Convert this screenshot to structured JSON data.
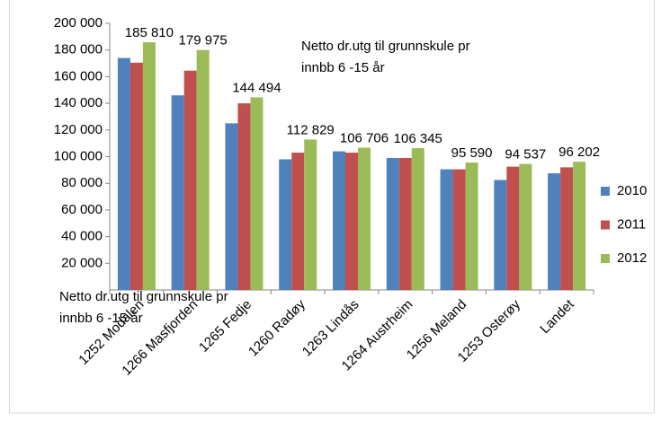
{
  "chart_data": {
    "type": "bar",
    "title_lines": [
      "Netto dr.utg til grunnskule pr",
      "innbb 6 -15 år"
    ],
    "xlabel_lines": [
      "Netto dr.utg til grunnskule pr",
      "innbb 6 -15 år"
    ],
    "categories": [
      "1252 Modalen",
      "1266 Masfjorden",
      "1265 Fedje",
      "1260 Radøy",
      "1263 Lindås",
      "1264 Austrheim",
      "1256 Meland",
      "1253 Osterøy",
      "Landet"
    ],
    "series": [
      {
        "name": "2010",
        "color": "#4f81bd",
        "values": [
          174000,
          146000,
          125000,
          98000,
          104000,
          99000,
          90500,
          82500,
          87500
        ]
      },
      {
        "name": "2011",
        "color": "#c0504d",
        "values": [
          170500,
          164500,
          140000,
          103000,
          103000,
          99000,
          90500,
          92500,
          92000
        ]
      },
      {
        "name": "2012",
        "color": "#9bbb59",
        "values": [
          185810,
          179975,
          144494,
          112829,
          106706,
          106345,
          95590,
          94537,
          96202
        ],
        "value_labels": [
          "185 810",
          "179 975",
          "144 494",
          "112 829",
          "106 706",
          "106 345",
          "95 590",
          "94 537",
          "96 202"
        ]
      }
    ],
    "ylim": [
      0,
      200000
    ],
    "yticks": [
      {
        "value": 20000,
        "label": "20 000"
      },
      {
        "value": 40000,
        "label": "40 000"
      },
      {
        "value": 60000,
        "label": "60 000"
      },
      {
        "value": 80000,
        "label": "80 000"
      },
      {
        "value": 100000,
        "label": "100 000"
      },
      {
        "value": 120000,
        "label": "120 000"
      },
      {
        "value": 140000,
        "label": "140 000"
      },
      {
        "value": 160000,
        "label": "160 000"
      },
      {
        "value": 180000,
        "label": "180 000"
      },
      {
        "value": 200000,
        "label": "200 000"
      }
    ],
    "grid": false,
    "legend": "right"
  }
}
